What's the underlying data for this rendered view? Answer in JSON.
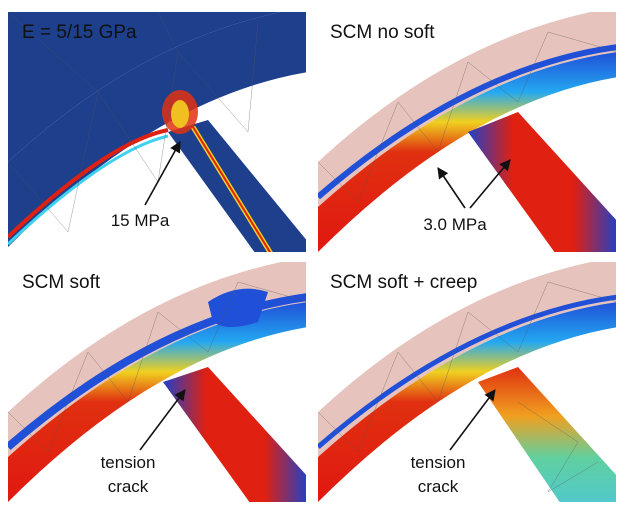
{
  "panels": [
    {
      "title": "E = 5/15 GPa",
      "label": [
        "15 MPa"
      ]
    },
    {
      "title": "SCM no soft",
      "label": [
        "3.0 MPa"
      ]
    },
    {
      "title": "SCM soft",
      "label": [
        "tension",
        "crack"
      ]
    },
    {
      "title": "SCM soft + creep",
      "label": [
        "tension",
        "crack"
      ]
    }
  ]
}
